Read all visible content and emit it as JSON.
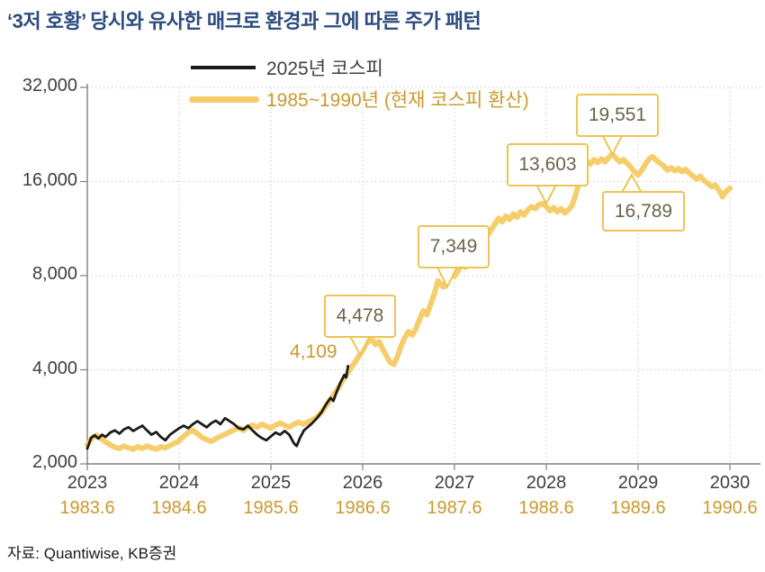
{
  "title": "‘3저 호황’ 당시와 유사한 매크로 환경과 그에 따른 주가 패턴",
  "source": "자료: Quantiwise, KB증권",
  "colors": {
    "title": "#2B4A7D",
    "axis_text": "#3F3F3F",
    "gold_text": "#C9992E",
    "series_2025": "#1a1a1a",
    "series_1985_1990": "#F6CD6B",
    "callout_border": "#ECC453",
    "callout_text": "#6C6349",
    "grid": "#c9c9c9"
  },
  "chart_data": {
    "type": "line",
    "title": "‘3저 호황’ 당시와 유사한 매크로 환경과 그에 따른 주가 패턴",
    "y_scale": "log2",
    "ylim": [
      2000,
      32000
    ],
    "grid": true,
    "legend_position": "top-left",
    "y_axis": {
      "labels": [
        "32,000",
        "16,000",
        "8,000",
        "4,000",
        "2,000"
      ],
      "values": [
        32000,
        16000,
        8000,
        4000,
        2000
      ]
    },
    "x_axis": {
      "primary_labels": [
        "2023",
        "2024",
        "2025",
        "2026",
        "2027",
        "2028",
        "2029",
        "2030"
      ],
      "secondary_labels": [
        "1983.6",
        "1984.6",
        "1985.6",
        "1986.6",
        "1987.6",
        "1988.6",
        "1989.6",
        "1990.6"
      ],
      "years": [
        2023,
        2024,
        2025,
        2026,
        2027,
        2028,
        2029,
        2030
      ]
    },
    "series": [
      {
        "name": "1985~1990년 (현재 코스피 환산)",
        "color": "#F6CD6B",
        "points": [
          [
            2023.0,
            2300
          ],
          [
            2023.05,
            2420
          ],
          [
            2023.1,
            2470
          ],
          [
            2023.15,
            2410
          ],
          [
            2023.2,
            2350
          ],
          [
            2023.25,
            2300
          ],
          [
            2023.3,
            2260
          ],
          [
            2023.35,
            2240
          ],
          [
            2023.4,
            2280
          ],
          [
            2023.45,
            2250
          ],
          [
            2023.5,
            2230
          ],
          [
            2023.55,
            2270
          ],
          [
            2023.6,
            2240
          ],
          [
            2023.65,
            2280
          ],
          [
            2023.7,
            2250
          ],
          [
            2023.75,
            2230
          ],
          [
            2023.8,
            2270
          ],
          [
            2023.85,
            2250
          ],
          [
            2023.9,
            2290
          ],
          [
            2023.95,
            2330
          ],
          [
            2024.0,
            2370
          ],
          [
            2024.05,
            2450
          ],
          [
            2024.1,
            2520
          ],
          [
            2024.15,
            2560
          ],
          [
            2024.2,
            2500
          ],
          [
            2024.25,
            2430
          ],
          [
            2024.3,
            2390
          ],
          [
            2024.35,
            2360
          ],
          [
            2024.4,
            2410
          ],
          [
            2024.45,
            2450
          ],
          [
            2024.5,
            2490
          ],
          [
            2024.55,
            2530
          ],
          [
            2024.6,
            2570
          ],
          [
            2024.65,
            2610
          ],
          [
            2024.7,
            2560
          ],
          [
            2024.75,
            2620
          ],
          [
            2024.8,
            2660
          ],
          [
            2024.85,
            2620
          ],
          [
            2024.9,
            2680
          ],
          [
            2024.95,
            2640
          ],
          [
            2025.0,
            2600
          ],
          [
            2025.05,
            2660
          ],
          [
            2025.1,
            2700
          ],
          [
            2025.15,
            2660
          ],
          [
            2025.2,
            2620
          ],
          [
            2025.25,
            2680
          ],
          [
            2025.3,
            2720
          ],
          [
            2025.35,
            2680
          ],
          [
            2025.4,
            2720
          ],
          [
            2025.45,
            2760
          ],
          [
            2025.5,
            2820
          ],
          [
            2025.55,
            2920
          ],
          [
            2025.6,
            3060
          ],
          [
            2025.65,
            3220
          ],
          [
            2025.7,
            3380
          ],
          [
            2025.75,
            3560
          ],
          [
            2025.8,
            3760
          ],
          [
            2025.85,
            3960
          ],
          [
            2025.9,
            4160
          ],
          [
            2025.95,
            4380
          ],
          [
            2026.0,
            4620
          ],
          [
            2026.05,
            4900
          ],
          [
            2026.1,
            5000
          ],
          [
            2026.14,
            4820
          ],
          [
            2026.18,
            4920
          ],
          [
            2026.22,
            4650
          ],
          [
            2026.26,
            4420
          ],
          [
            2026.3,
            4220
          ],
          [
            2026.34,
            4160
          ],
          [
            2026.38,
            4420
          ],
          [
            2026.42,
            4780
          ],
          [
            2026.46,
            5080
          ],
          [
            2026.5,
            5300
          ],
          [
            2026.54,
            5160
          ],
          [
            2026.58,
            5420
          ],
          [
            2026.62,
            5800
          ],
          [
            2026.66,
            6180
          ],
          [
            2026.7,
            6000
          ],
          [
            2026.74,
            6480
          ],
          [
            2026.78,
            7000
          ],
          [
            2026.82,
            7700
          ],
          [
            2026.85,
            7500
          ],
          [
            2026.88,
            7349
          ],
          [
            2026.92,
            7900
          ],
          [
            2026.96,
            8250
          ],
          [
            2027.0,
            7950
          ],
          [
            2027.04,
            8300
          ],
          [
            2027.08,
            8700
          ],
          [
            2027.12,
            8500
          ],
          [
            2027.16,
            9000
          ],
          [
            2027.2,
            9600
          ],
          [
            2027.24,
            10000
          ],
          [
            2027.28,
            9800
          ],
          [
            2027.32,
            10400
          ],
          [
            2027.36,
            10800
          ],
          [
            2027.4,
            11200
          ],
          [
            2027.44,
            11700
          ],
          [
            2027.48,
            12200
          ],
          [
            2027.52,
            11900
          ],
          [
            2027.56,
            12400
          ],
          [
            2027.6,
            12100
          ],
          [
            2027.64,
            12600
          ],
          [
            2027.68,
            12300
          ],
          [
            2027.72,
            12800
          ],
          [
            2027.76,
            12500
          ],
          [
            2027.8,
            13000
          ],
          [
            2027.84,
            13300
          ],
          [
            2027.88,
            13100
          ],
          [
            2027.92,
            13500
          ],
          [
            2027.96,
            13603
          ],
          [
            2028.0,
            13300
          ],
          [
            2028.04,
            12900
          ],
          [
            2028.08,
            13200
          ],
          [
            2028.12,
            12800
          ],
          [
            2028.16,
            13100
          ],
          [
            2028.2,
            12700
          ],
          [
            2028.24,
            13000
          ],
          [
            2028.28,
            13400
          ],
          [
            2028.32,
            14500
          ],
          [
            2028.36,
            16000
          ],
          [
            2028.4,
            17500
          ],
          [
            2028.44,
            18600
          ],
          [
            2028.48,
            18200
          ],
          [
            2028.52,
            18800
          ],
          [
            2028.56,
            18400
          ],
          [
            2028.6,
            18900
          ],
          [
            2028.64,
            18500
          ],
          [
            2028.68,
            19100
          ],
          [
            2028.72,
            19551
          ],
          [
            2028.76,
            19000
          ],
          [
            2028.8,
            18500
          ],
          [
            2028.84,
            18800
          ],
          [
            2028.88,
            18300
          ],
          [
            2028.92,
            17800
          ],
          [
            2028.96,
            17200
          ],
          [
            2029.0,
            16789
          ],
          [
            2029.04,
            17400
          ],
          [
            2029.08,
            18200
          ],
          [
            2029.12,
            18900
          ],
          [
            2029.16,
            19200
          ],
          [
            2029.2,
            18700
          ],
          [
            2029.24,
            18300
          ],
          [
            2029.28,
            17900
          ],
          [
            2029.32,
            17400
          ],
          [
            2029.36,
            17700
          ],
          [
            2029.4,
            17300
          ],
          [
            2029.44,
            17600
          ],
          [
            2029.48,
            17200
          ],
          [
            2029.52,
            17500
          ],
          [
            2029.56,
            17000
          ],
          [
            2029.6,
            16600
          ],
          [
            2029.64,
            16300
          ],
          [
            2029.68,
            16600
          ],
          [
            2029.72,
            16100
          ],
          [
            2029.76,
            15800
          ],
          [
            2029.8,
            15400
          ],
          [
            2029.84,
            15600
          ],
          [
            2029.88,
            15000
          ],
          [
            2029.92,
            14300
          ],
          [
            2029.96,
            14900
          ],
          [
            2030.0,
            15200
          ]
        ]
      },
      {
        "name": "2025년 코스피",
        "color": "#1a1a1a",
        "points": [
          [
            2023.0,
            2240
          ],
          [
            2023.04,
            2420
          ],
          [
            2023.08,
            2470
          ],
          [
            2023.12,
            2410
          ],
          [
            2023.16,
            2480
          ],
          [
            2023.2,
            2440
          ],
          [
            2023.25,
            2520
          ],
          [
            2023.3,
            2560
          ],
          [
            2023.35,
            2500
          ],
          [
            2023.4,
            2580
          ],
          [
            2023.45,
            2620
          ],
          [
            2023.5,
            2550
          ],
          [
            2023.55,
            2600
          ],
          [
            2023.6,
            2650
          ],
          [
            2023.65,
            2560
          ],
          [
            2023.7,
            2480
          ],
          [
            2023.75,
            2530
          ],
          [
            2023.8,
            2440
          ],
          [
            2023.85,
            2380
          ],
          [
            2023.9,
            2480
          ],
          [
            2023.95,
            2540
          ],
          [
            2024.0,
            2600
          ],
          [
            2024.05,
            2650
          ],
          [
            2024.1,
            2600
          ],
          [
            2024.15,
            2680
          ],
          [
            2024.2,
            2740
          ],
          [
            2024.25,
            2680
          ],
          [
            2024.3,
            2620
          ],
          [
            2024.35,
            2700
          ],
          [
            2024.4,
            2750
          ],
          [
            2024.45,
            2680
          ],
          [
            2024.5,
            2800
          ],
          [
            2024.55,
            2740
          ],
          [
            2024.6,
            2680
          ],
          [
            2024.65,
            2600
          ],
          [
            2024.7,
            2580
          ],
          [
            2024.75,
            2650
          ],
          [
            2024.8,
            2560
          ],
          [
            2024.85,
            2480
          ],
          [
            2024.9,
            2420
          ],
          [
            2024.95,
            2380
          ],
          [
            2025.0,
            2450
          ],
          [
            2025.05,
            2520
          ],
          [
            2025.1,
            2480
          ],
          [
            2025.15,
            2550
          ],
          [
            2025.2,
            2480
          ],
          [
            2025.25,
            2330
          ],
          [
            2025.28,
            2280
          ],
          [
            2025.32,
            2430
          ],
          [
            2025.36,
            2560
          ],
          [
            2025.4,
            2620
          ],
          [
            2025.45,
            2700
          ],
          [
            2025.5,
            2800
          ],
          [
            2025.55,
            2920
          ],
          [
            2025.6,
            3100
          ],
          [
            2025.65,
            3250
          ],
          [
            2025.68,
            3180
          ],
          [
            2025.72,
            3420
          ],
          [
            2025.76,
            3650
          ],
          [
            2025.8,
            3850
          ],
          [
            2025.82,
            3780
          ],
          [
            2025.84,
            4109
          ]
        ]
      }
    ],
    "annotations": [
      {
        "label": "4,109",
        "style": "plain",
        "x": 2025.84,
        "value": 4109
      },
      {
        "label": "4,478",
        "style": "callout",
        "edge": "bottom",
        "x": 2025.97,
        "value": 4478
      },
      {
        "label": "7,349",
        "style": "callout",
        "edge": "bottom",
        "x": 2026.92,
        "value": 7349
      },
      {
        "label": "13,603",
        "style": "callout",
        "edge": "bottom",
        "x": 2028.0,
        "value": 13603
      },
      {
        "label": "19,551",
        "style": "callout",
        "edge": "bottom",
        "x": 2028.72,
        "value": 19551
      },
      {
        "label": "16,789",
        "style": "callout",
        "edge": "top",
        "x": 2028.93,
        "value": 16789
      }
    ]
  }
}
